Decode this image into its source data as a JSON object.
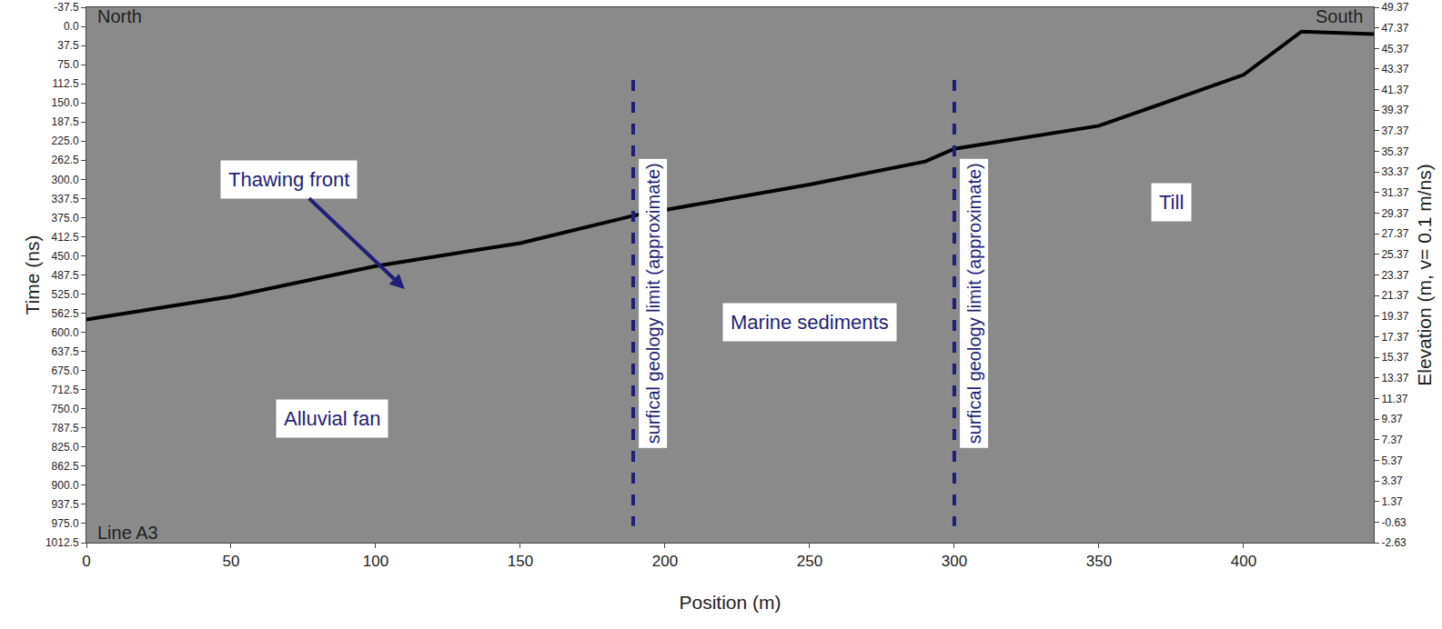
{
  "chart_data": {
    "type": "line",
    "x_label": "Position (m)",
    "y_label": "Time (ns)",
    "y2_label": "Elevation (m, v= 0.1 m/ns)",
    "xlim": [
      0,
      445
    ],
    "xticks": [
      0,
      50,
      100,
      150,
      200,
      250,
      300,
      350,
      400
    ],
    "ylim": [
      1012.5,
      -37.5
    ],
    "yticks": [
      -37.5,
      {
        "value": 0,
        "label": "0.0"
      },
      37.5,
      {
        "value": 75,
        "label": "75.0"
      },
      112.5,
      {
        "value": 150,
        "label": "150.0"
      },
      187.5,
      {
        "value": 225,
        "label": "225.0"
      },
      262.5,
      {
        "value": 300,
        "label": "300.0"
      },
      337.5,
      {
        "value": 375,
        "label": "375.0"
      },
      412.5,
      {
        "value": 450,
        "label": "450.0"
      },
      487.5,
      {
        "value": 525,
        "label": "525.0"
      },
      562.5,
      {
        "value": 600,
        "label": "600.0"
      },
      637.5,
      {
        "value": 675,
        "label": "675.0"
      },
      712.5,
      {
        "value": 750,
        "label": "750.0"
      },
      787.5,
      {
        "value": 825,
        "label": "825.0"
      },
      862.5,
      {
        "value": 900,
        "label": "900.0"
      },
      937.5,
      {
        "value": 975,
        "label": "975.0"
      },
      1012.5
    ],
    "y2lim": [
      -2.63,
      49.37
    ],
    "y2ticks": [
      49.37,
      47.37,
      45.37,
      43.37,
      41.37,
      39.37,
      37.37,
      35.37,
      33.37,
      31.37,
      29.37,
      27.37,
      25.37,
      23.37,
      21.37,
      19.37,
      17.37,
      15.37,
      13.37,
      11.37,
      9.37,
      7.37,
      5.37,
      3.37,
      1.37,
      -0.63,
      -2.63
    ],
    "grid": false,
    "series": [
      {
        "color": "#000000",
        "line_style": "solid",
        "x": [
          0,
          50,
          100,
          150,
          190,
          250,
          290,
          300,
          350,
          400,
          420,
          445
        ],
        "values": [
          575,
          530,
          470,
          425,
          370,
          310,
          265,
          240,
          195,
          95,
          10,
          15
        ]
      }
    ],
    "geology_limits": {
      "x": [
        189,
        300
      ],
      "y": [
        105,
        980
      ],
      "color": "#1f1f7a",
      "line_style": "dash",
      "label": "surfical geology limit (approximate)"
    },
    "annotations": [
      {
        "text": "North",
        "x": 3,
        "y": -20
      },
      {
        "text": "South",
        "x": 442,
        "y": -20
      },
      {
        "text": "Line A3",
        "x": 3,
        "y": 993
      },
      {
        "text": "Thawing front",
        "x": 70,
        "y": 300,
        "ax": 70,
        "ay": 300,
        "arrow_x": 110,
        "arrow_y": 515
      },
      {
        "text": "Marine sediments",
        "x": 250,
        "y": 580
      },
      {
        "text": "Alluvial fan",
        "x": 85,
        "y": 770
      },
      {
        "text": "Till",
        "x": 375,
        "y": 345
      }
    ]
  }
}
